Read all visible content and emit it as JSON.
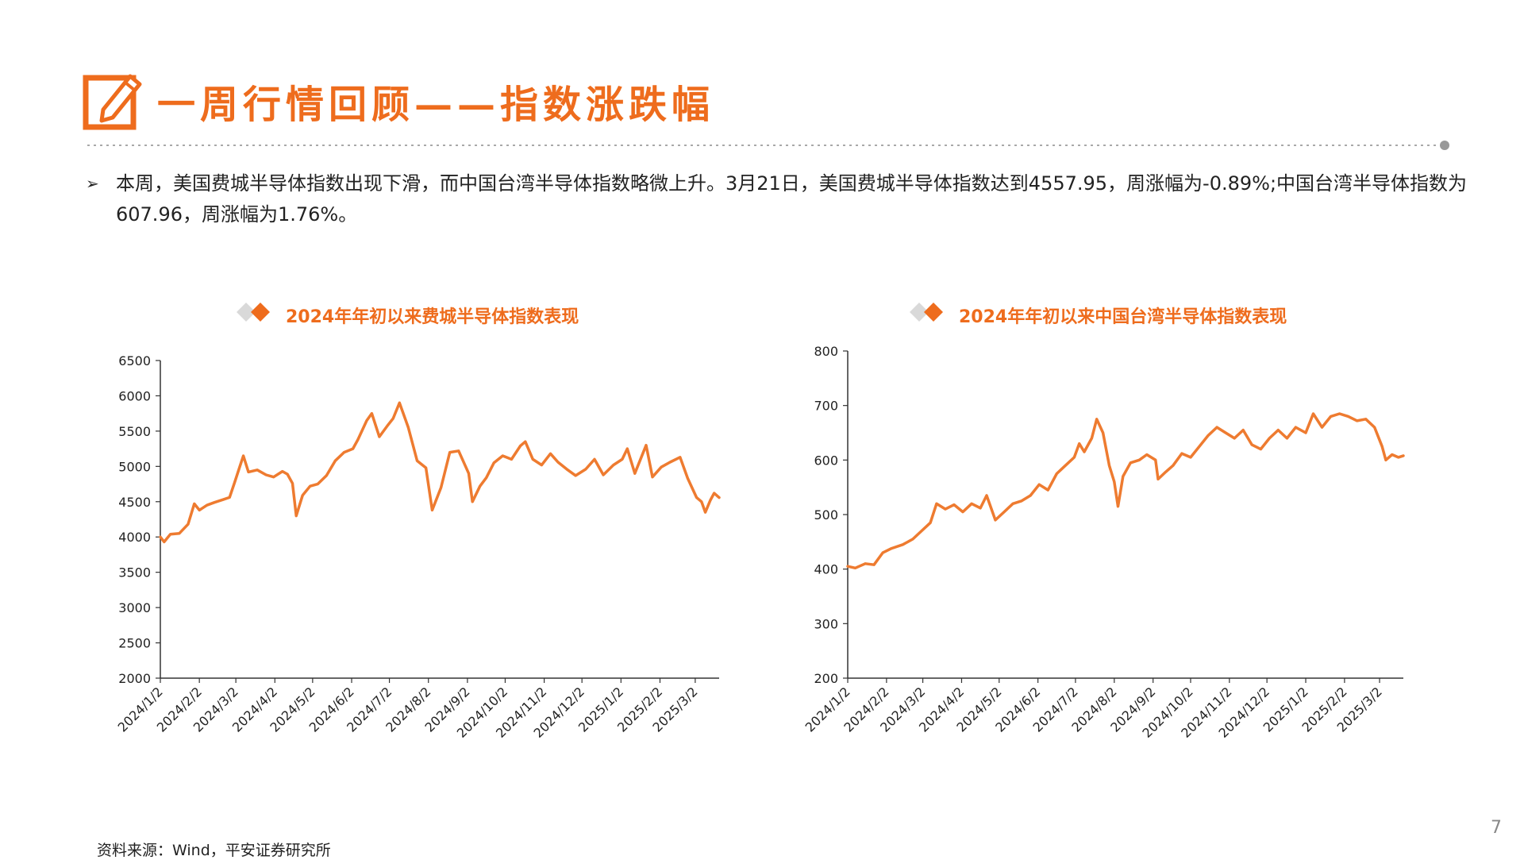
{
  "header": {
    "title": "一周行情回顾——指数涨跌幅",
    "icon": "pencil-edit-icon",
    "accent": "#ee6c1d"
  },
  "bullet": {
    "text": "本周，美国费城半导体指数出现下滑，而中国台湾半导体指数略微上升。3月21日，美国费城半导体指数达到4557.95，周涨幅为-0.89%;中国台湾半导体指数为607.96，周涨幅为1.76%。"
  },
  "footer": {
    "source": "资料来源：Wind，平安证券研究所",
    "page": "7"
  },
  "chart_data": [
    {
      "type": "line",
      "title": "2024年年初以来费城半导体指数表现",
      "color": "#ee7b30",
      "ylim": [
        2000,
        6500
      ],
      "yticks": [
        2000,
        2500,
        3000,
        3500,
        4000,
        4500,
        5000,
        5500,
        6000,
        6500
      ],
      "xticks": [
        "2024/1/2",
        "2024/2/2",
        "2024/3/2",
        "2024/4/2",
        "2024/5/2",
        "2024/6/2",
        "2024/7/2",
        "2024/8/2",
        "2024/9/2",
        "2024/10/2",
        "2024/11/2",
        "2024/12/2",
        "2025/1/2",
        "2025/2/2",
        "2025/3/2"
      ],
      "xlim": [
        "2024-01-02",
        "2025-03-21"
      ],
      "series": [
        {
          "points": [
            [
              "2024-01-02",
              4000
            ],
            [
              "2024-01-05",
              3930
            ],
            [
              "2024-01-10",
              4040
            ],
            [
              "2024-01-17",
              4050
            ],
            [
              "2024-01-24",
              4180
            ],
            [
              "2024-01-29",
              4470
            ],
            [
              "2024-02-02",
              4380
            ],
            [
              "2024-02-08",
              4450
            ],
            [
              "2024-02-14",
              4490
            ],
            [
              "2024-02-21",
              4530
            ],
            [
              "2024-02-26",
              4560
            ],
            [
              "2024-03-01",
              4770
            ],
            [
              "2024-03-05",
              4990
            ],
            [
              "2024-03-08",
              5150
            ],
            [
              "2024-03-12",
              4920
            ],
            [
              "2024-03-19",
              4950
            ],
            [
              "2024-03-26",
              4880
            ],
            [
              "2024-04-01",
              4850
            ],
            [
              "2024-04-08",
              4930
            ],
            [
              "2024-04-12",
              4890
            ],
            [
              "2024-04-16",
              4760
            ],
            [
              "2024-04-19",
              4300
            ],
            [
              "2024-04-24",
              4590
            ],
            [
              "2024-04-30",
              4720
            ],
            [
              "2024-05-06",
              4750
            ],
            [
              "2024-05-13",
              4870
            ],
            [
              "2024-05-20",
              5080
            ],
            [
              "2024-05-27",
              5200
            ],
            [
              "2024-06-03",
              5250
            ],
            [
              "2024-06-07",
              5380
            ],
            [
              "2024-06-14",
              5650
            ],
            [
              "2024-06-18",
              5750
            ],
            [
              "2024-06-24",
              5420
            ],
            [
              "2024-07-01",
              5590
            ],
            [
              "2024-07-05",
              5680
            ],
            [
              "2024-07-10",
              5900
            ],
            [
              "2024-07-17",
              5550
            ],
            [
              "2024-07-24",
              5080
            ],
            [
              "2024-07-31",
              4980
            ],
            [
              "2024-08-05",
              4380
            ],
            [
              "2024-08-12",
              4700
            ],
            [
              "2024-08-19",
              5200
            ],
            [
              "2024-08-26",
              5220
            ],
            [
              "2024-09-03",
              4900
            ],
            [
              "2024-09-06",
              4500
            ],
            [
              "2024-09-12",
              4720
            ],
            [
              "2024-09-17",
              4840
            ],
            [
              "2024-09-23",
              5050
            ],
            [
              "2024-09-30",
              5150
            ],
            [
              "2024-10-07",
              5100
            ],
            [
              "2024-10-14",
              5290
            ],
            [
              "2024-10-18",
              5350
            ],
            [
              "2024-10-24",
              5100
            ],
            [
              "2024-10-31",
              5020
            ],
            [
              "2024-11-07",
              5180
            ],
            [
              "2024-11-13",
              5060
            ],
            [
              "2024-11-20",
              4960
            ],
            [
              "2024-11-27",
              4870
            ],
            [
              "2024-12-05",
              4960
            ],
            [
              "2024-12-12",
              5100
            ],
            [
              "2024-12-19",
              4880
            ],
            [
              "2024-12-27",
              5020
            ],
            [
              "2025-01-03",
              5100
            ],
            [
              "2025-01-07",
              5250
            ],
            [
              "2025-01-13",
              4900
            ],
            [
              "2025-01-22",
              5300
            ],
            [
              "2025-01-27",
              4850
            ],
            [
              "2025-02-03",
              4990
            ],
            [
              "2025-02-10",
              5060
            ],
            [
              "2025-02-18",
              5130
            ],
            [
              "2025-02-24",
              4830
            ],
            [
              "2025-03-03",
              4560
            ],
            [
              "2025-03-07",
              4500
            ],
            [
              "2025-03-10",
              4350
            ],
            [
              "2025-03-14",
              4520
            ],
            [
              "2025-03-17",
              4620
            ],
            [
              "2025-03-21",
              4557.95
            ]
          ]
        }
      ]
    },
    {
      "type": "line",
      "title": "2024年年初以来中国台湾半导体指数表现",
      "color": "#ee7b30",
      "ylim": [
        200,
        800
      ],
      "yticks": [
        200,
        300,
        400,
        500,
        600,
        700,
        800
      ],
      "xticks": [
        "2024/1/2",
        "2024/2/2",
        "2024/3/2",
        "2024/4/2",
        "2024/5/2",
        "2024/6/2",
        "2024/7/2",
        "2024/8/2",
        "2024/9/2",
        "2024/10/2",
        "2024/11/2",
        "2024/12/2",
        "2025/1/2",
        "2025/2/2",
        "2025/3/2"
      ],
      "xlim": [
        "2024-01-02",
        "2025-03-21"
      ],
      "series": [
        {
          "points": [
            [
              "2024-01-02",
              405
            ],
            [
              "2024-01-08",
              402
            ],
            [
              "2024-01-16",
              410
            ],
            [
              "2024-01-23",
              408
            ],
            [
              "2024-01-30",
              430
            ],
            [
              "2024-02-06",
              438
            ],
            [
              "2024-02-15",
              445
            ],
            [
              "2024-02-23",
              455
            ],
            [
              "2024-03-01",
              470
            ],
            [
              "2024-03-08",
              485
            ],
            [
              "2024-03-13",
              520
            ],
            [
              "2024-03-20",
              510
            ],
            [
              "2024-03-27",
              518
            ],
            [
              "2024-04-03",
              505
            ],
            [
              "2024-04-10",
              520
            ],
            [
              "2024-04-17",
              512
            ],
            [
              "2024-04-22",
              535
            ],
            [
              "2024-04-29",
              490
            ],
            [
              "2024-05-06",
              505
            ],
            [
              "2024-05-13",
              520
            ],
            [
              "2024-05-20",
              525
            ],
            [
              "2024-05-27",
              535
            ],
            [
              "2024-06-03",
              555
            ],
            [
              "2024-06-10",
              545
            ],
            [
              "2024-06-17",
              575
            ],
            [
              "2024-06-24",
              590
            ],
            [
              "2024-07-01",
              605
            ],
            [
              "2024-07-05",
              630
            ],
            [
              "2024-07-09",
              615
            ],
            [
              "2024-07-15",
              640
            ],
            [
              "2024-07-19",
              675
            ],
            [
              "2024-07-24",
              650
            ],
            [
              "2024-07-29",
              590
            ],
            [
              "2024-08-02",
              560
            ],
            [
              "2024-08-05",
              515
            ],
            [
              "2024-08-09",
              570
            ],
            [
              "2024-08-15",
              595
            ],
            [
              "2024-08-22",
              600
            ],
            [
              "2024-08-28",
              610
            ],
            [
              "2024-09-04",
              600
            ],
            [
              "2024-09-06",
              565
            ],
            [
              "2024-09-12",
              578
            ],
            [
              "2024-09-18",
              590
            ],
            [
              "2024-09-25",
              612
            ],
            [
              "2024-10-02",
              605
            ],
            [
              "2024-10-09",
              625
            ],
            [
              "2024-10-16",
              645
            ],
            [
              "2024-10-23",
              660
            ],
            [
              "2024-10-30",
              650
            ],
            [
              "2024-11-06",
              640
            ],
            [
              "2024-11-13",
              655
            ],
            [
              "2024-11-20",
              628
            ],
            [
              "2024-11-27",
              620
            ],
            [
              "2024-12-04",
              640
            ],
            [
              "2024-12-11",
              655
            ],
            [
              "2024-12-18",
              640
            ],
            [
              "2024-12-25",
              660
            ],
            [
              "2025-01-02",
              650
            ],
            [
              "2025-01-08",
              685
            ],
            [
              "2025-01-15",
              660
            ],
            [
              "2025-01-22",
              680
            ],
            [
              "2025-01-29",
              685
            ],
            [
              "2025-02-05",
              680
            ],
            [
              "2025-02-12",
              672
            ],
            [
              "2025-02-19",
              675
            ],
            [
              "2025-02-26",
              660
            ],
            [
              "2025-03-04",
              625
            ],
            [
              "2025-03-07",
              600
            ],
            [
              "2025-03-12",
              610
            ],
            [
              "2025-03-17",
              605
            ],
            [
              "2025-03-21",
              607.96
            ]
          ]
        }
      ]
    }
  ]
}
